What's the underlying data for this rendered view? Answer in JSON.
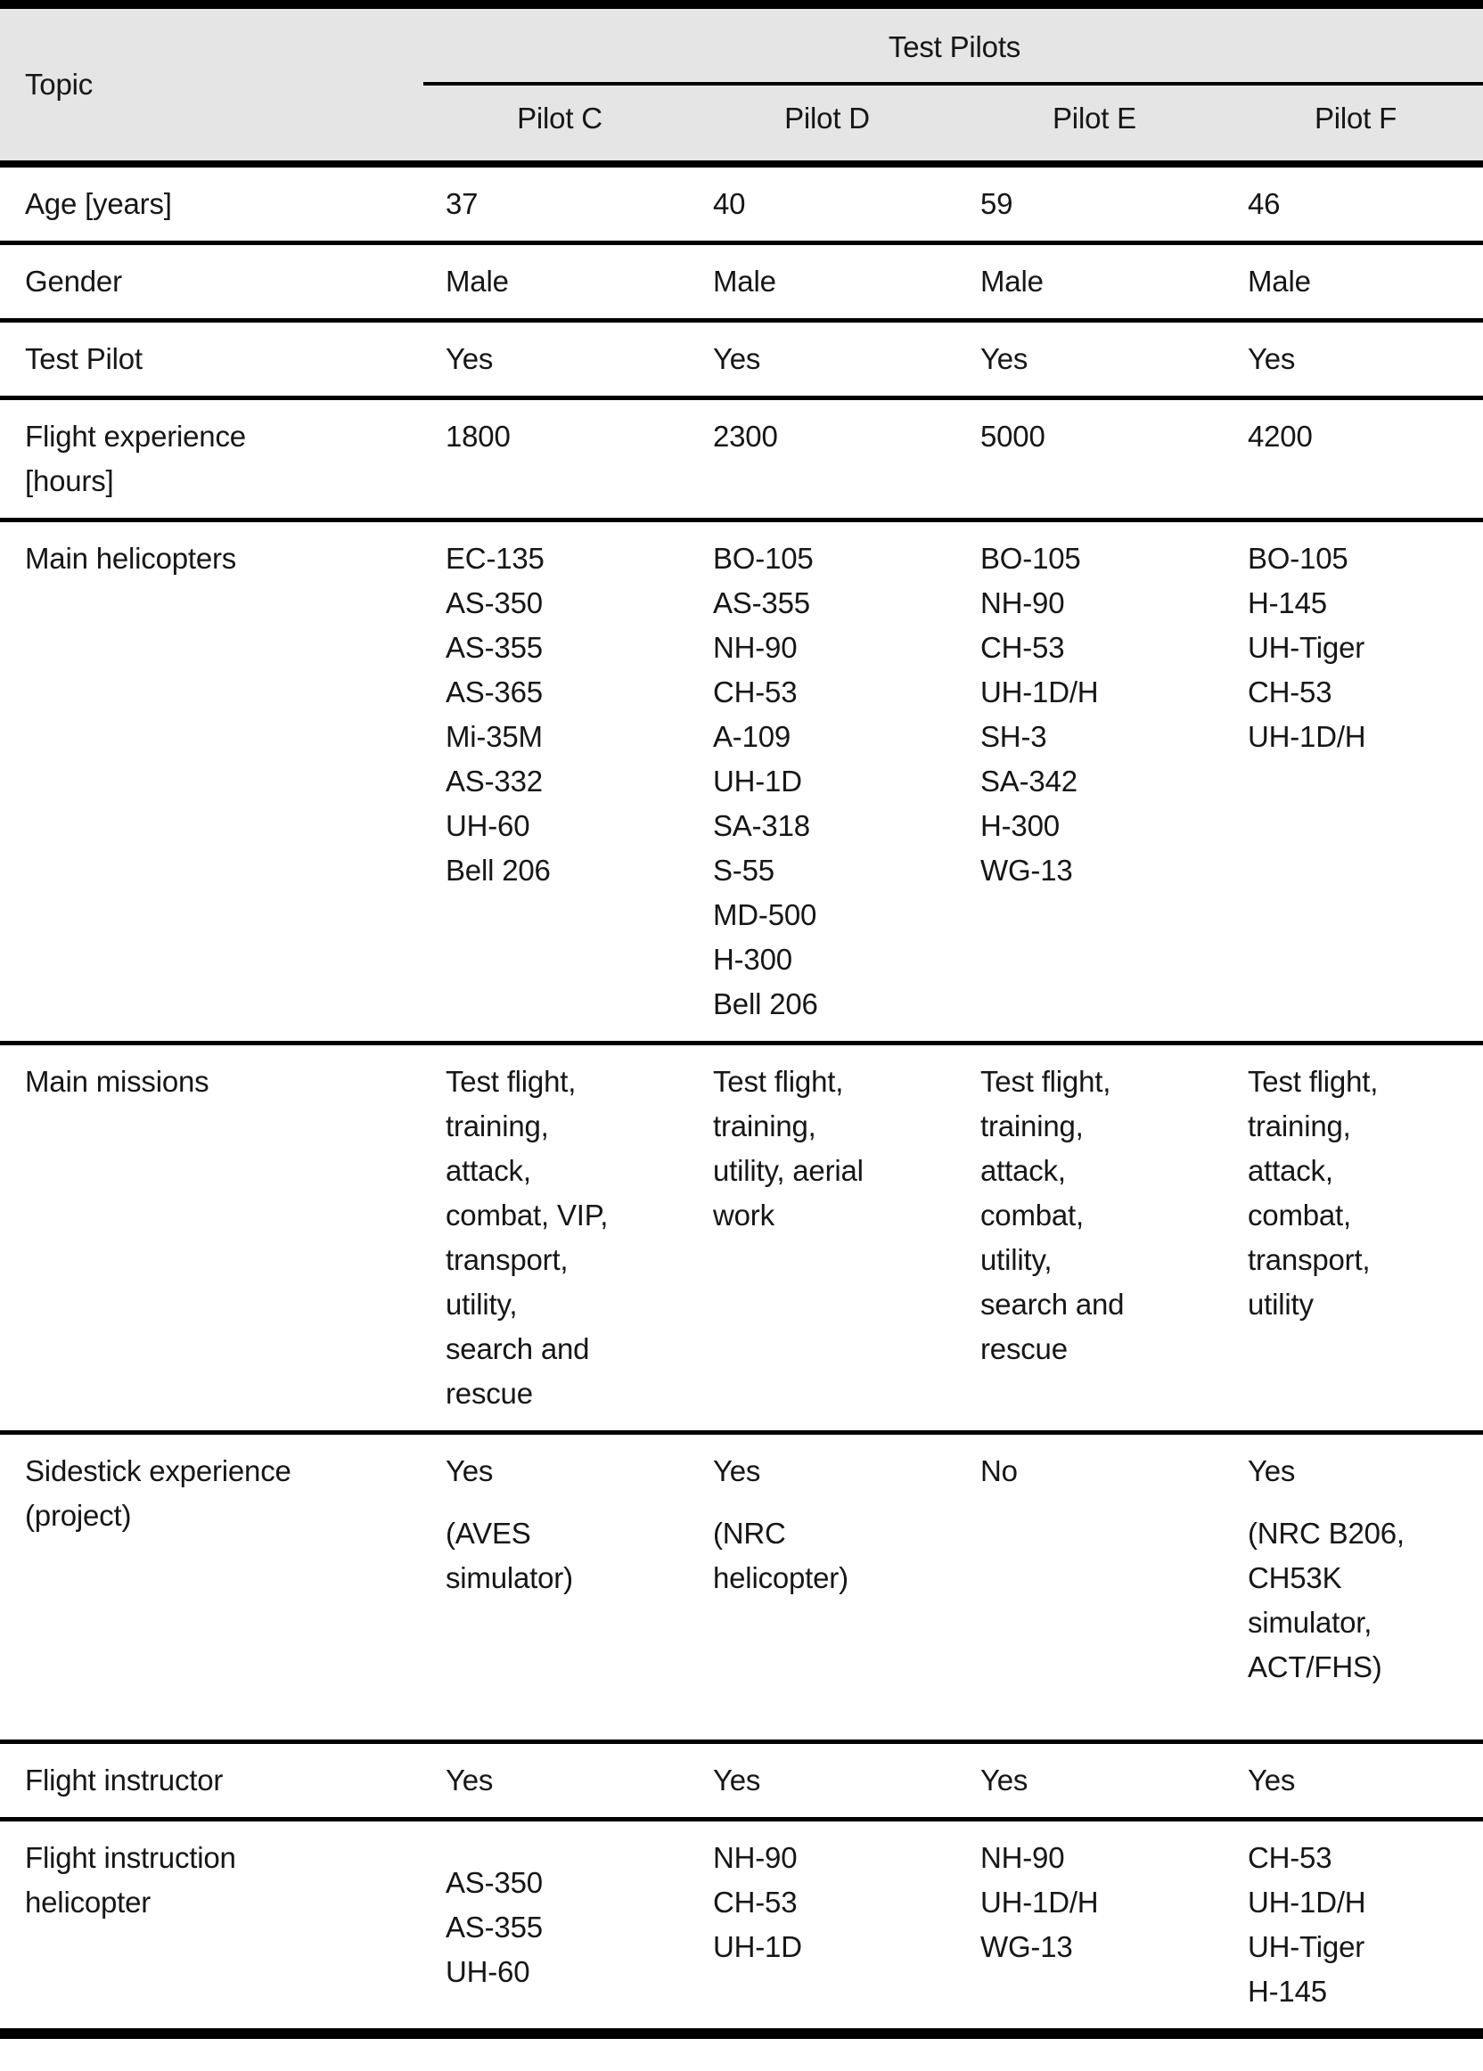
{
  "table": {
    "header": {
      "topic": "Topic",
      "group": "Test Pilots",
      "pilots": [
        "Pilot C",
        "Pilot D",
        "Pilot E",
        "Pilot F"
      ]
    },
    "rows": [
      {
        "topic": "Age [years]",
        "type": "text",
        "values": [
          "37",
          "40",
          "59",
          "46"
        ]
      },
      {
        "topic": "Gender",
        "type": "text",
        "values": [
          "Male",
          "Male",
          "Male",
          "Male"
        ]
      },
      {
        "topic": "Test Pilot",
        "type": "text",
        "values": [
          "Yes",
          "Yes",
          "Yes",
          "Yes"
        ]
      },
      {
        "topic": "Flight experience\n[hours]",
        "type": "text",
        "values": [
          "1800",
          "2300",
          "5000",
          "4200"
        ]
      },
      {
        "topic": "Main helicopters",
        "type": "list",
        "values": [
          [
            "EC-135",
            "AS-350",
            "AS-355",
            "AS-365",
            "Mi-35M",
            "AS-332",
            "UH-60",
            "Bell 206"
          ],
          [
            "BO-105",
            "AS-355",
            "NH-90",
            "CH-53",
            "A-109",
            "UH-1D",
            "SA-318",
            "S-55",
            "MD-500",
            "H-300",
            "Bell 206"
          ],
          [
            "BO-105",
            "NH-90",
            "CH-53",
            "UH-1D/H",
            "SH-3",
            "SA-342",
            "H-300",
            "WG-13"
          ],
          [
            "BO-105",
            "H-145",
            "UH-Tiger",
            "CH-53",
            "UH-1D/H"
          ]
        ]
      },
      {
        "topic": "Main missions",
        "type": "text",
        "values": [
          "Test flight,\ntraining,\nattack,\ncombat, VIP,\ntransport,\nutility,\nsearch and\nrescue",
          "Test flight,\ntraining,\nutility, aerial\nwork",
          "Test flight,\ntraining,\nattack,\ncombat,\nutility,\nsearch and\nrescue",
          "Test flight,\ntraining,\nattack,\ncombat,\ntransport,\nutility"
        ]
      },
      {
        "topic": "Sidestick experience\n(project)",
        "type": "answer_note",
        "values": [
          {
            "answer": "Yes",
            "note": "(AVES\nsimulator)"
          },
          {
            "answer": "Yes",
            "note": "(NRC\nhelicopter)"
          },
          {
            "answer": "No",
            "note": ""
          },
          {
            "answer": "Yes",
            "note": "(NRC B206,\nCH53K\nsimulator,\nACT/FHS)"
          }
        ]
      },
      {
        "topic": "Flight instructor",
        "type": "text",
        "values": [
          "Yes",
          "Yes",
          "Yes",
          "Yes"
        ]
      },
      {
        "topic": "Flight instruction\nhelicopter",
        "type": "list",
        "values": [
          [
            "AS-350",
            "AS-355",
            "UH-60"
          ],
          [
            "NH-90",
            "CH-53",
            "UH-1D"
          ],
          [
            "NH-90",
            "UH-1D/H",
            "WG-13"
          ],
          [
            "CH-53",
            "UH-1D/H",
            "UH-Tiger",
            "H-145"
          ]
        ]
      }
    ]
  },
  "colors": {
    "header_bg": "#e5e5e5",
    "rule": "#000000",
    "text": "#161616",
    "page_bg": "#ffffff"
  }
}
